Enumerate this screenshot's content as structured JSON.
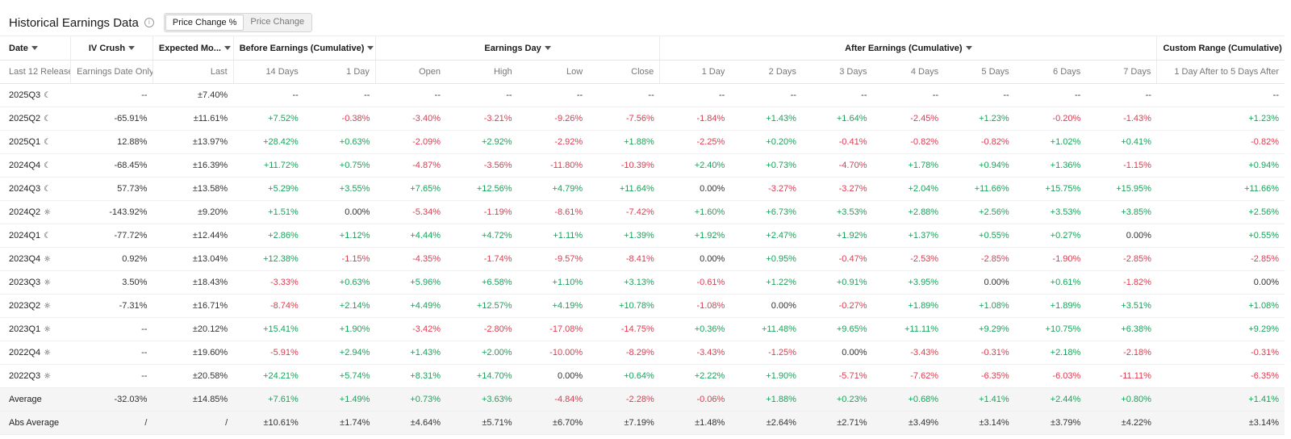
{
  "header": {
    "title": "Historical Earnings Data",
    "toggle": {
      "active": "Price Change %",
      "inactive": "Price Change"
    }
  },
  "columns": {
    "groups": {
      "date": "Date",
      "iv_crush": "IV Crush",
      "expected_move": "Expected Mo...",
      "before": "Before Earnings (Cumulative)",
      "earnings_day": "Earnings Day",
      "after": "After Earnings (Cumulative)",
      "custom": "Custom Range (Cumulative)"
    },
    "sub": {
      "date": "Last 12 Release",
      "iv_crush": "Earnings Date Only",
      "expected_move": "Last",
      "before_14": "14 Days",
      "before_1": "1 Day",
      "open": "Open",
      "high": "High",
      "low": "Low",
      "close": "Close",
      "after_1": "1 Day",
      "after_2": "2 Days",
      "after_3": "3 Days",
      "after_4": "4 Days",
      "after_5": "5 Days",
      "after_6": "6 Days",
      "after_7": "7 Days",
      "custom": "1 Day After to 5 Days After"
    }
  },
  "rows": [
    {
      "date": "2025Q3",
      "icon": "moon-icon",
      "cells": [
        "--",
        "±7.40%",
        "--",
        "--",
        "--",
        "--",
        "--",
        "--",
        "--",
        "--",
        "--",
        "--",
        "--",
        "--",
        "--",
        "--"
      ]
    },
    {
      "date": "2025Q2",
      "icon": "moon-icon",
      "cells": [
        "-65.91%",
        "±11.61%",
        "+7.52%",
        "-0.38%",
        "-3.40%",
        "-3.21%",
        "-9.26%",
        "-7.56%",
        "-1.84%",
        "+1.43%",
        "+1.64%",
        "-2.45%",
        "+1.23%",
        "-0.20%",
        "-1.43%",
        "+1.23%"
      ]
    },
    {
      "date": "2025Q1",
      "icon": "moon-icon",
      "cells": [
        "12.88%",
        "±13.97%",
        "+28.42%",
        "+0.63%",
        "-2.09%",
        "+2.92%",
        "-2.92%",
        "+1.88%",
        "-2.25%",
        "+0.20%",
        "-0.41%",
        "-0.82%",
        "-0.82%",
        "+1.02%",
        "+0.41%",
        "-0.82%"
      ]
    },
    {
      "date": "2024Q4",
      "icon": "moon-icon",
      "cells": [
        "-68.45%",
        "±16.39%",
        "+11.72%",
        "+0.75%",
        "-4.87%",
        "-3.56%",
        "-11.80%",
        "-10.39%",
        "+2.40%",
        "+0.73%",
        "-4.70%",
        "+1.78%",
        "+0.94%",
        "+1.36%",
        "-1.15%",
        "+0.94%"
      ]
    },
    {
      "date": "2024Q3",
      "icon": "moon-icon",
      "cells": [
        "57.73%",
        "±13.58%",
        "+5.29%",
        "+3.55%",
        "+7.65%",
        "+12.56%",
        "+4.79%",
        "+11.64%",
        "0.00%",
        "-3.27%",
        "-3.27%",
        "+2.04%",
        "+11.66%",
        "+15.75%",
        "+15.95%",
        "+11.66%"
      ]
    },
    {
      "date": "2024Q2",
      "icon": "sun-icon",
      "cells": [
        "-143.92%",
        "±9.20%",
        "+1.51%",
        "0.00%",
        "-5.34%",
        "-1.19%",
        "-8.61%",
        "-7.42%",
        "+1.60%",
        "+6.73%",
        "+3.53%",
        "+2.88%",
        "+2.56%",
        "+3.53%",
        "+3.85%",
        "+2.56%"
      ]
    },
    {
      "date": "2024Q1",
      "icon": "moon-icon",
      "cells": [
        "-77.72%",
        "±12.44%",
        "+2.86%",
        "+1.12%",
        "+4.44%",
        "+4.72%",
        "+1.11%",
        "+1.39%",
        "+1.92%",
        "+2.47%",
        "+1.92%",
        "+1.37%",
        "+0.55%",
        "+0.27%",
        "0.00%",
        "+0.55%"
      ]
    },
    {
      "date": "2023Q4",
      "icon": "sun-icon",
      "cells": [
        "0.92%",
        "±13.04%",
        "+12.38%",
        "-1.15%",
        "-4.35%",
        "-1.74%",
        "-9.57%",
        "-8.41%",
        "0.00%",
        "+0.95%",
        "-0.47%",
        "-2.53%",
        "-2.85%",
        "-1.90%",
        "-2.85%",
        "-2.85%"
      ]
    },
    {
      "date": "2023Q3",
      "icon": "sun-icon",
      "cells": [
        "3.50%",
        "±18.43%",
        "-3.33%",
        "+0.63%",
        "+5.96%",
        "+6.58%",
        "+1.10%",
        "+3.13%",
        "-0.61%",
        "+1.22%",
        "+0.91%",
        "+3.95%",
        "0.00%",
        "+0.61%",
        "-1.82%",
        "0.00%"
      ]
    },
    {
      "date": "2023Q2",
      "icon": "sun-icon",
      "cells": [
        "-7.31%",
        "±16.71%",
        "-8.74%",
        "+2.14%",
        "+4.49%",
        "+12.57%",
        "+4.19%",
        "+10.78%",
        "-1.08%",
        "0.00%",
        "-0.27%",
        "+1.89%",
        "+1.08%",
        "+1.89%",
        "+3.51%",
        "+1.08%"
      ]
    },
    {
      "date": "2023Q1",
      "icon": "sun-icon",
      "cells": [
        "--",
        "±20.12%",
        "+15.41%",
        "+1.90%",
        "-3.42%",
        "-2.80%",
        "-17.08%",
        "-14.75%",
        "+0.36%",
        "+11.48%",
        "+9.65%",
        "+11.11%",
        "+9.29%",
        "+10.75%",
        "+6.38%",
        "+9.29%"
      ]
    },
    {
      "date": "2022Q4",
      "icon": "sun-icon",
      "cells": [
        "--",
        "±19.60%",
        "-5.91%",
        "+2.94%",
        "+1.43%",
        "+2.00%",
        "-10.00%",
        "-8.29%",
        "-3.43%",
        "-1.25%",
        "0.00%",
        "-3.43%",
        "-0.31%",
        "+2.18%",
        "-2.18%",
        "-0.31%"
      ]
    },
    {
      "date": "2022Q3",
      "icon": "sun-icon",
      "cells": [
        "--",
        "±20.58%",
        "+24.21%",
        "+5.74%",
        "+8.31%",
        "+14.70%",
        "0.00%",
        "+0.64%",
        "+2.22%",
        "+1.90%",
        "-5.71%",
        "-7.62%",
        "-6.35%",
        "-6.03%",
        "-11.11%",
        "-6.35%"
      ]
    }
  ],
  "summary": [
    {
      "label": "Average",
      "cells": [
        "-32.03%",
        "±14.85%",
        "+7.61%",
        "+1.49%",
        "+0.73%",
        "+3.63%",
        "-4.84%",
        "-2.28%",
        "-0.06%",
        "+1.88%",
        "+0.23%",
        "+0.68%",
        "+1.41%",
        "+2.44%",
        "+0.80%",
        "+1.41%"
      ]
    },
    {
      "label": "Abs Average",
      "cells": [
        "/",
        "/",
        "±10.61%",
        "±1.74%",
        "±4.64%",
        "±5.71%",
        "±6.70%",
        "±7.19%",
        "±1.48%",
        "±2.64%",
        "±2.71%",
        "±3.49%",
        "±3.14%",
        "±3.79%",
        "±4.22%",
        "±3.14%"
      ]
    }
  ],
  "colors": {
    "positive": "#1aa35a",
    "negative": "#e03a4e",
    "neutral": "#333333"
  }
}
